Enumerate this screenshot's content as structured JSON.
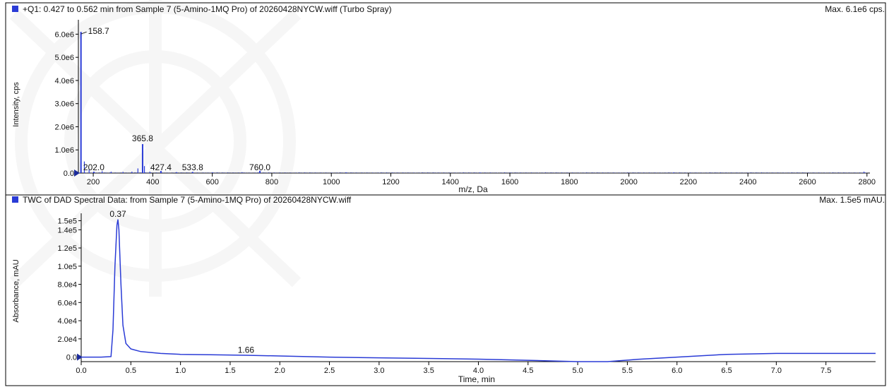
{
  "colors": {
    "series": "#2a3bd6",
    "axis": "#000000",
    "text": "#111111"
  },
  "chart_data": [
    {
      "type": "line",
      "title": "+Q1: 0.427 to 0.562 min from Sample 7 (5-Amino-1MQ Pro) of 20260428NYCW.wiff (Turbo Spray)",
      "max_label": "Max. 6.1e6 cps.",
      "xlabel": "m/z, Da",
      "ylabel": "Intensity, cps",
      "xlim": [
        150,
        2810
      ],
      "ylim": [
        0,
        6500000
      ],
      "x_ticks": [
        200,
        400,
        600,
        800,
        1000,
        1200,
        1400,
        1600,
        1800,
        2000,
        2200,
        2400,
        2600,
        2800
      ],
      "y_ticks": [
        {
          "value": 0,
          "label": "0.0"
        },
        {
          "value": 1000000,
          "label": "1.0e6"
        },
        {
          "value": 2000000,
          "label": "2.0e6"
        },
        {
          "value": 3000000,
          "label": "3.0e6"
        },
        {
          "value": 4000000,
          "label": "4.0e6"
        },
        {
          "value": 5000000,
          "label": "5.0e6"
        },
        {
          "value": 6000000,
          "label": "6.0e6"
        }
      ],
      "peaks": [
        {
          "x": 158.7,
          "y": 6100000,
          "label": "158.7"
        },
        {
          "x": 202.0,
          "y": 60000,
          "label": "202.0"
        },
        {
          "x": 365.8,
          "y": 1250000,
          "label": "365.8"
        },
        {
          "x": 427.4,
          "y": 90000,
          "label": "427.4"
        },
        {
          "x": 533.8,
          "y": 50000,
          "label": "533.8"
        },
        {
          "x": 760.0,
          "y": 100000,
          "label": "760.0"
        }
      ],
      "minor_peaks": [
        {
          "x": 170,
          "y": 500000
        },
        {
          "x": 186,
          "y": 150000
        },
        {
          "x": 230,
          "y": 80000
        },
        {
          "x": 260,
          "y": 60000
        },
        {
          "x": 300,
          "y": 50000
        },
        {
          "x": 330,
          "y": 60000
        },
        {
          "x": 350,
          "y": 200000
        },
        {
          "x": 372,
          "y": 300000
        },
        {
          "x": 390,
          "y": 60000
        },
        {
          "x": 480,
          "y": 40000
        },
        {
          "x": 600,
          "y": 35000
        },
        {
          "x": 700,
          "y": 40000
        },
        {
          "x": 1050,
          "y": 30000
        },
        {
          "x": 1500,
          "y": 25000
        },
        {
          "x": 2150,
          "y": 25000
        },
        {
          "x": 2790,
          "y": 60000
        }
      ]
    },
    {
      "type": "line",
      "title": "TWC of DAD Spectral Data: from Sample 7 (5-Amino-1MQ Pro) of 20260428NYCW.wiff",
      "max_label": "Max. 1.5e5 mAU.",
      "xlabel": "Time, min",
      "ylabel": "Absorbance, mAU",
      "xlim": [
        0,
        8.0
      ],
      "ylim": [
        -5000,
        155000
      ],
      "x_ticks": [
        0.0,
        0.5,
        1.0,
        1.5,
        2.0,
        2.5,
        3.0,
        3.5,
        4.0,
        4.5,
        5.0,
        5.5,
        6.0,
        6.5,
        7.0,
        7.5
      ],
      "y_ticks": [
        {
          "value": 0,
          "label": "0.0"
        },
        {
          "value": 20000,
          "label": "2.0e4"
        },
        {
          "value": 40000,
          "label": "4.0e4"
        },
        {
          "value": 60000,
          "label": "6.0e4"
        },
        {
          "value": 80000,
          "label": "8.0e4"
        },
        {
          "value": 100000,
          "label": "1.0e5"
        },
        {
          "value": 120000,
          "label": "1.2e5"
        },
        {
          "value": 140000,
          "label": "1.4e5"
        },
        {
          "value": 150000,
          "label": "1.5e5"
        }
      ],
      "peak_labels": [
        {
          "x": 0.37,
          "y": 151000,
          "label": "0.37"
        },
        {
          "x": 1.66,
          "y": 1500,
          "label": "1.66"
        }
      ],
      "x": [
        0,
        0.2,
        0.3,
        0.32,
        0.34,
        0.36,
        0.37,
        0.38,
        0.4,
        0.42,
        0.45,
        0.5,
        0.6,
        0.8,
        1.0,
        1.3,
        1.66,
        2.0,
        2.5,
        3.0,
        3.5,
        4.0,
        4.5,
        5.0,
        5.3,
        5.6,
        6.0,
        6.5,
        7.0,
        7.5,
        8.0
      ],
      "y": [
        0,
        0,
        500,
        30000,
        100000,
        145000,
        151000,
        140000,
        80000,
        35000,
        15000,
        9000,
        6000,
        4000,
        3000,
        2500,
        2000,
        1200,
        0,
        -800,
        -1500,
        -2300,
        -3500,
        -5000,
        -5000,
        -2500,
        0,
        3000,
        4000,
        4000,
        4000
      ]
    }
  ]
}
